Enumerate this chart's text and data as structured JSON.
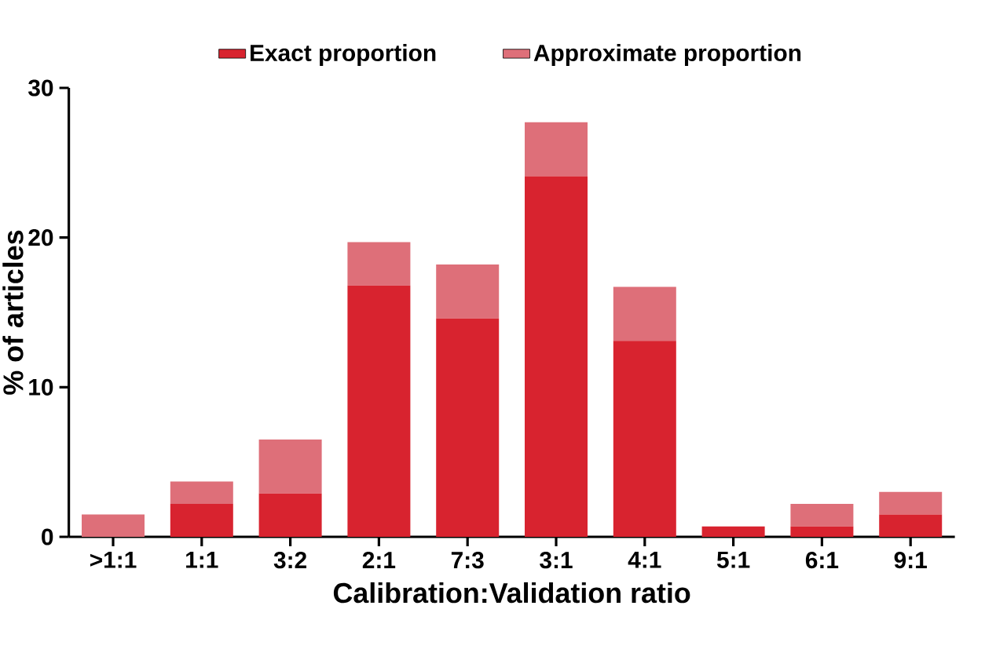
{
  "chart_data": {
    "type": "bar",
    "stacked": true,
    "xlabel": "Calibration:Validation ratio",
    "ylabel": "% of articles",
    "categories": [
      ">1:1",
      "1:1",
      "3:2",
      "2:1",
      "7:3",
      "3:1",
      "4:1",
      "5:1",
      "6:1",
      "9:1"
    ],
    "series": [
      {
        "name": "Exact proportion",
        "color": "#d8232f",
        "values": [
          0,
          2.2,
          2.9,
          16.8,
          14.6,
          24.1,
          13.1,
          0.7,
          0.7,
          1.5
        ]
      },
      {
        "name": "Approximate proportion",
        "color": "#de6f79",
        "values": [
          1.5,
          1.5,
          3.6,
          2.9,
          3.6,
          3.6,
          3.6,
          0,
          1.5,
          1.5
        ]
      }
    ],
    "ylim": [
      0,
      30
    ],
    "yticks": [
      0,
      10,
      20,
      30
    ],
    "legend": "top"
  }
}
